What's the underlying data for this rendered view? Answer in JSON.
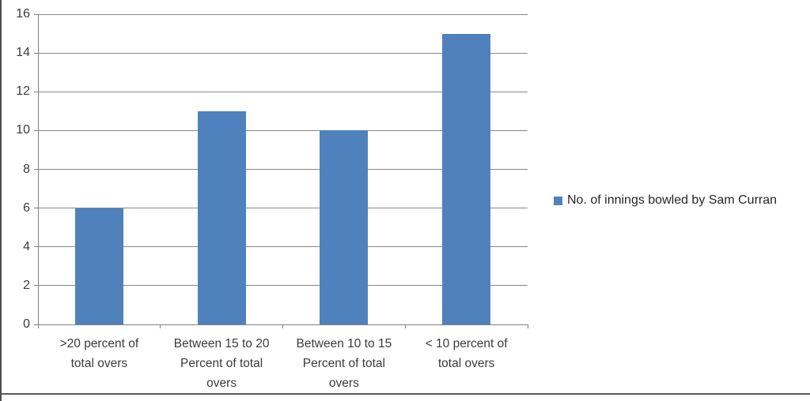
{
  "chart_data": {
    "type": "bar",
    "title": "",
    "xlabel": "",
    "ylabel": "",
    "categories": [
      ">20 percent of\ntotal overs",
      "Between 15 to 20\nPercent of total\novers",
      "Between 10 to 15\nPercent of total\novers",
      "< 10 percent of\ntotal overs"
    ],
    "values": [
      6,
      11,
      10,
      15
    ],
    "series_name": "No. of innings bowled by Sam Curran",
    "ylim": [
      0,
      16
    ],
    "yticks": [
      0,
      2,
      4,
      6,
      8,
      10,
      12,
      14,
      16
    ],
    "grid": true,
    "legend_position": "right",
    "colors": {
      "bar": "#4F81BD",
      "gridline": "#878787",
      "axis": "#808080",
      "tick_text": "#3b3b3b",
      "legend_text": "#262626",
      "frame_border": "#4d4d4d"
    }
  }
}
